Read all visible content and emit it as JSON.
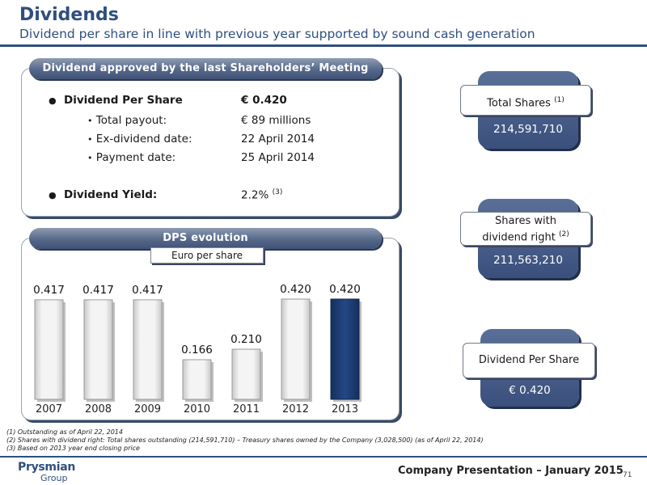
{
  "header": {
    "title": "Dividends",
    "subtitle": "Dividend per share in line with previous year supported by sound cash generation"
  },
  "dividend_panel": {
    "banner": "Dividend approved by the last Shareholders’ Meeting",
    "rows": [
      {
        "label": "Dividend Per Share",
        "value": "€ 0.420"
      },
      {
        "label": "Total payout:",
        "value": "€ 89 millions"
      },
      {
        "label": "Ex-dividend date:",
        "value": "22 April 2014"
      },
      {
        "label": "Payment date:",
        "value": "25 April 2014"
      },
      {
        "label": "Dividend Yield:",
        "value": "2.2%",
        "sup": "(3)"
      }
    ]
  },
  "dps_panel": {
    "banner": "DPS evolution",
    "unit_label": "Euro per share"
  },
  "chart_data": {
    "type": "bar",
    "categories": [
      "2007",
      "2008",
      "2009",
      "2010",
      "2011",
      "2012",
      "2013"
    ],
    "values": [
      0.417,
      0.417,
      0.417,
      0.166,
      0.21,
      0.42,
      0.42
    ],
    "value_labels": [
      "0.417",
      "0.417",
      "0.417",
      "0.166",
      "0.210",
      "0.420",
      "0.420"
    ],
    "ylim": [
      0,
      0.42
    ],
    "highlight_index": 6,
    "colors": {
      "normal": "#e6e6e6",
      "highlight": "#1f3c73"
    }
  },
  "side": {
    "total_shares": {
      "label": "Total Shares",
      "sup": "(1)",
      "value": "214,591,710"
    },
    "shares_dividend": {
      "label_line1": "Shares with",
      "label_line2": "dividend right",
      "sup": "(2)",
      "value": "211,563,210"
    },
    "dps": {
      "label": "Dividend Per Share",
      "value": "€ 0.420"
    }
  },
  "footnotes": [
    "(1) Outstanding as of April 22, 2014",
    "(2) Shares with dividend right: Total shares outstanding (214,591,710) – Treasury shares owned by the Company (3,028,500) (as of April 22, 2014)",
    "(3) Based on 2013 year end closing price"
  ],
  "footer": {
    "logo_line1": "Prysmian",
    "logo_line2": "Group",
    "presentation": "Company Presentation – January 2015",
    "page_number": "71"
  },
  "colors": {
    "brand_blue": "#2f4f7f",
    "highlight_bar": "#1f3c73"
  }
}
